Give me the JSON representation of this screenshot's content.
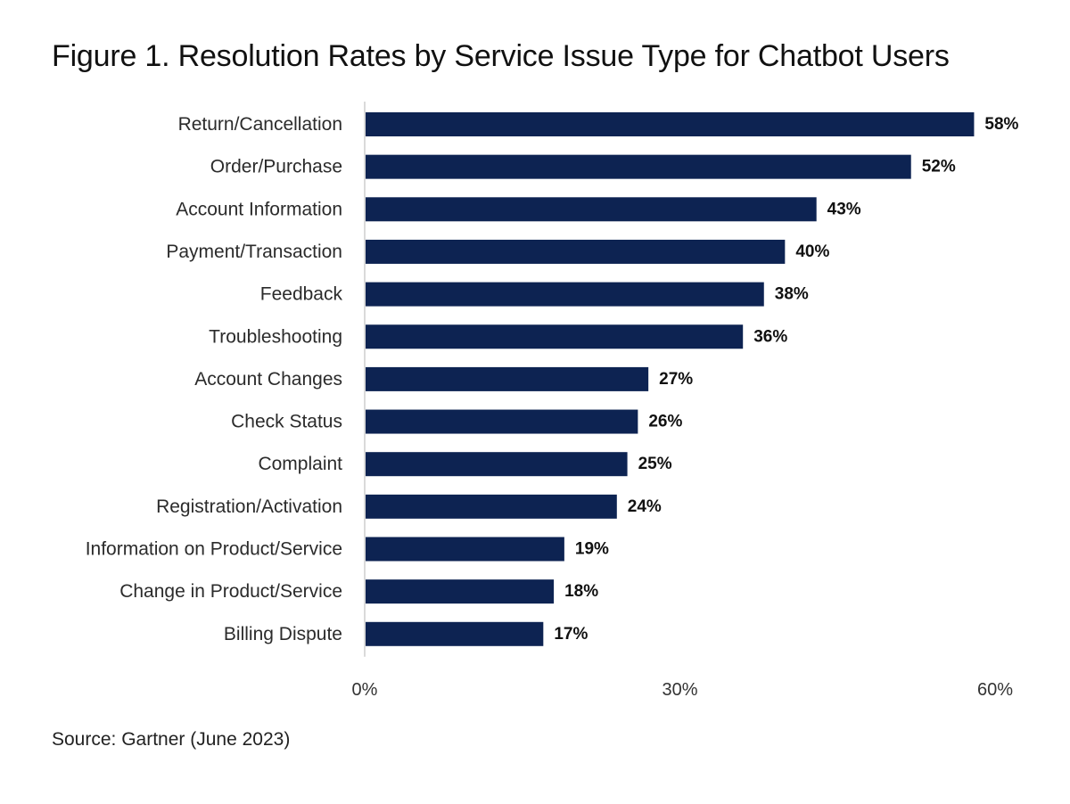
{
  "title": "Figure 1. Resolution Rates by Service Issue Type for Chatbot Users",
  "source": "Source: Gartner (June 2023)",
  "colors": {
    "bar": "#0d2352",
    "axis": "#b5b5b5"
  },
  "chart_data": {
    "type": "bar",
    "orientation": "horizontal",
    "title": "Figure 1. Resolution Rates by Service Issue Type for Chatbot Users",
    "categories": [
      "Return/Cancellation",
      "Order/Purchase",
      "Account Information",
      "Payment/Transaction",
      "Feedback",
      "Troubleshooting",
      "Account Changes",
      "Check Status",
      "Complaint",
      "Registration/Activation",
      "Information on Product/Service",
      "Change in Product/Service",
      "Billing Dispute"
    ],
    "values": [
      58,
      52,
      43,
      40,
      38,
      36,
      27,
      26,
      25,
      24,
      19,
      18,
      17
    ],
    "value_labels": [
      "58%",
      "52%",
      "43%",
      "40%",
      "38%",
      "36%",
      "27%",
      "26%",
      "25%",
      "24%",
      "19%",
      "18%",
      "17%"
    ],
    "xticks": [
      0,
      30,
      60
    ],
    "xtick_labels": [
      "0%",
      "30%",
      "60%"
    ],
    "xlim": [
      0,
      60
    ],
    "xlabel": "",
    "ylabel": "",
    "grid": false,
    "legend": "none"
  }
}
